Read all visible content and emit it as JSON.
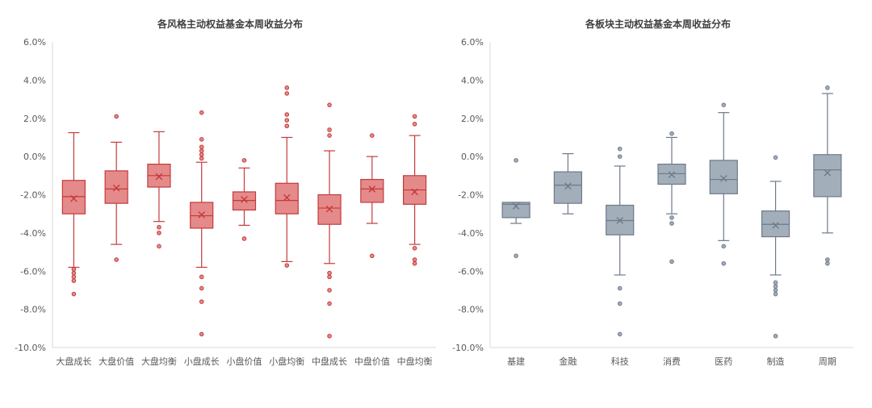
{
  "colors": {
    "left_fill": "#e58a8a",
    "left_stroke": "#c43a3a",
    "right_fill": "#a3aebb",
    "right_stroke": "#6e7a8a"
  },
  "chart_data": [
    {
      "type": "boxplot",
      "title": "各风格主动权益基金本周收益分布",
      "ylim": [
        -10.0,
        6.0
      ],
      "y_ticks": [
        "6.0%",
        "4.0%",
        "2.0%",
        "0.0%",
        "-2.0%",
        "-4.0%",
        "-6.0%",
        "-8.0%",
        "-10.0%"
      ],
      "y_tick_values": [
        6,
        4,
        2,
        0,
        -2,
        -4,
        -6,
        -8,
        -10
      ],
      "grid": false,
      "categories": [
        "大盘成长",
        "大盘价值",
        "大盘均衡",
        "小盘成长",
        "小盘价值",
        "小盘均衡",
        "中盘成长",
        "中盘价值",
        "中盘均衡"
      ],
      "boxes": [
        {
          "min": -5.8,
          "q1": -3.0,
          "median": -2.1,
          "mean": -2.2,
          "q3": -1.25,
          "max": 1.25,
          "outliers": [
            -5.9,
            -6.1,
            -6.3,
            -6.5,
            -7.2
          ]
        },
        {
          "min": -4.6,
          "q1": -2.45,
          "median": -1.7,
          "mean": -1.65,
          "q3": -0.75,
          "max": 0.75,
          "outliers": [
            -5.4,
            2.1
          ]
        },
        {
          "min": -3.4,
          "q1": -1.6,
          "median": -1.0,
          "mean": -1.05,
          "q3": -0.4,
          "max": 1.3,
          "outliers": [
            -3.7,
            -4.0,
            -4.7
          ]
        },
        {
          "min": -5.8,
          "q1": -3.75,
          "median": -3.1,
          "mean": -3.05,
          "q3": -2.4,
          "max": -0.3,
          "outliers": [
            -0.1,
            0.1,
            0.3,
            0.5,
            0.9,
            2.3,
            -6.3,
            -6.9,
            -7.6,
            -9.3
          ]
        },
        {
          "min": -3.6,
          "q1": -2.8,
          "median": -2.3,
          "mean": -2.25,
          "q3": -1.85,
          "max": -0.6,
          "outliers": [
            -0.2,
            -4.3
          ]
        },
        {
          "min": -5.5,
          "q1": -3.0,
          "median": -2.3,
          "mean": -2.15,
          "q3": -1.4,
          "max": 1.0,
          "outliers": [
            1.6,
            1.9,
            2.2,
            3.3,
            3.6,
            -5.7
          ]
        },
        {
          "min": -5.6,
          "q1": -3.55,
          "median": -2.7,
          "mean": -2.75,
          "q3": -2.0,
          "max": 0.3,
          "outliers": [
            1.1,
            1.4,
            2.7,
            -6.1,
            -6.3,
            -7.0,
            -7.7,
            -9.4
          ]
        },
        {
          "min": -3.5,
          "q1": -2.4,
          "median": -1.7,
          "mean": -1.7,
          "q3": -1.2,
          "max": 0.0,
          "outliers": [
            1.1,
            -5.2
          ]
        },
        {
          "min": -4.6,
          "q1": -2.5,
          "median": -1.75,
          "mean": -1.85,
          "q3": -1.0,
          "max": 1.1,
          "outliers": [
            1.7,
            2.1,
            -4.8,
            -5.4,
            -5.6
          ]
        }
      ]
    },
    {
      "type": "boxplot",
      "title": "各板块主动权益基金本周收益分布",
      "ylim": [
        -10.0,
        6.0
      ],
      "y_ticks": [
        "6.0%",
        "4.0%",
        "2.0%",
        "0.0%",
        "-2.0%",
        "-4.0%",
        "-6.0%",
        "-8.0%",
        "-10.0%"
      ],
      "y_tick_values": [
        6,
        4,
        2,
        0,
        -2,
        -4,
        -6,
        -8,
        -10
      ],
      "grid": false,
      "categories": [
        "基建",
        "金融",
        "科技",
        "消费",
        "医药",
        "制造",
        "周期"
      ],
      "boxes": [
        {
          "min": -3.5,
          "q1": -3.2,
          "median": -2.5,
          "mean": -2.6,
          "q3": -2.4,
          "max": -2.4,
          "outliers": [
            -0.2,
            -5.2
          ]
        },
        {
          "min": -3.0,
          "q1": -2.45,
          "median": -1.5,
          "mean": -1.55,
          "q3": -0.8,
          "max": 0.15,
          "outliers": []
        },
        {
          "min": -6.2,
          "q1": -4.1,
          "median": -3.35,
          "mean": -3.35,
          "q3": -2.55,
          "max": -0.5,
          "outliers": [
            0.0,
            0.4,
            -6.9,
            -7.7,
            -9.3
          ]
        },
        {
          "min": -3.0,
          "q1": -1.45,
          "median": -0.9,
          "mean": -0.95,
          "q3": -0.4,
          "max": 1.0,
          "outliers": [
            1.2,
            -3.2,
            -3.5,
            -5.5
          ]
        },
        {
          "min": -4.4,
          "q1": -1.95,
          "median": -1.2,
          "mean": -1.15,
          "q3": -0.2,
          "max": 2.3,
          "outliers": [
            2.7,
            -4.7,
            -5.6
          ]
        },
        {
          "min": -6.2,
          "q1": -4.2,
          "median": -3.55,
          "mean": -3.6,
          "q3": -2.85,
          "max": -1.3,
          "outliers": [
            -0.05,
            -6.6,
            -6.8,
            -7.0,
            -7.2,
            -9.4
          ]
        },
        {
          "min": -4.0,
          "q1": -2.1,
          "median": -0.7,
          "mean": -0.85,
          "q3": 0.1,
          "max": 3.3,
          "outliers": [
            3.6,
            -5.4,
            -5.6
          ]
        }
      ]
    }
  ]
}
